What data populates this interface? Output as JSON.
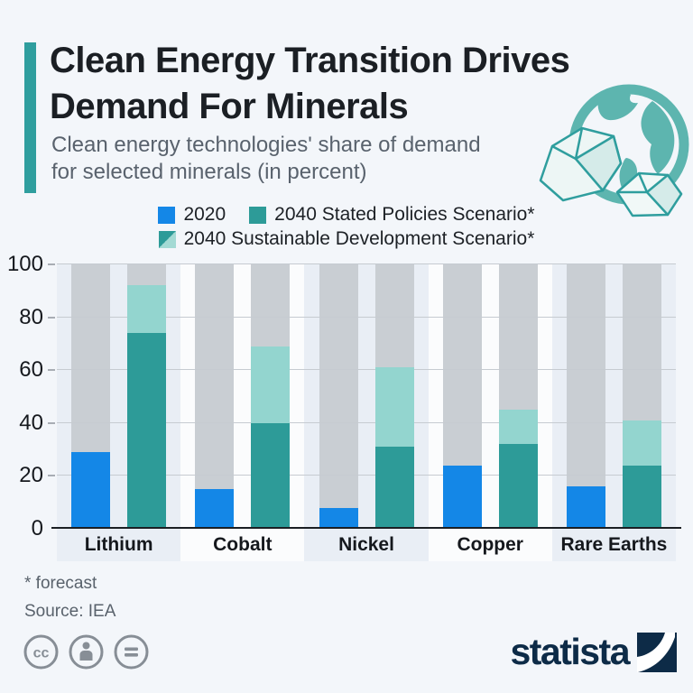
{
  "header": {
    "title_line1": "Clean Energy Transition Drives",
    "title_line2": "Demand For Minerals",
    "subtitle_line1": "Clean energy technologies' share of demand",
    "subtitle_line2": "for selected minerals (in percent)",
    "accent_color": "#2f9e9e"
  },
  "legend": {
    "items": [
      {
        "label": "2020",
        "color": "#1487e7",
        "swatch_style": "background:#1487e7"
      },
      {
        "label": "2040 Stated Policies Scenario*",
        "color": "#2d9b98",
        "swatch_style": "background:#2d9b98"
      },
      {
        "label": "2040 Sustainable Development Scenario*",
        "colors": [
          "#2d9b98",
          "#93d5cf"
        ],
        "swatch_style": "background:linear-gradient(135deg,#2d9b98 50%,#a3dad4 50%)"
      }
    ]
  },
  "chart_data": {
    "type": "bar",
    "title": "Clean Energy Transition Drives Demand For Minerals",
    "subtitle": "Clean energy technologies' share of demand for selected minerals (in percent)",
    "categories": [
      "Lithium",
      "Cobalt",
      "Nickel",
      "Copper",
      "Rare Earths"
    ],
    "series": [
      {
        "name": "2020",
        "values": [
          29,
          15,
          8,
          24,
          16
        ],
        "color": "#1487e7"
      },
      {
        "name": "2040 Stated Policies Scenario*",
        "values": [
          74,
          40,
          31,
          32,
          24
        ],
        "color": "#2d9b98"
      },
      {
        "name": "2040 Sustainable Development Scenario*",
        "values": [
          92,
          69,
          61,
          45,
          41
        ],
        "color": "#93d5cf"
      }
    ],
    "ylim": [
      0,
      100
    ],
    "yticks": [
      0,
      20,
      40,
      60,
      80,
      100
    ],
    "grid": true,
    "legend_position": "top",
    "track_color": "#c9ced3",
    "band_colors": [
      "#e9eef5",
      "#fbfcfd"
    ],
    "gridline_color": "#c6cbd1"
  },
  "footer": {
    "note": "* forecast",
    "source": "Source: IEA"
  },
  "branding": {
    "logo_text": "statista",
    "logo_color": "#0d2b47",
    "license_icons": [
      "cc-icon",
      "attribution-icon",
      "no-derivatives-icon"
    ]
  }
}
